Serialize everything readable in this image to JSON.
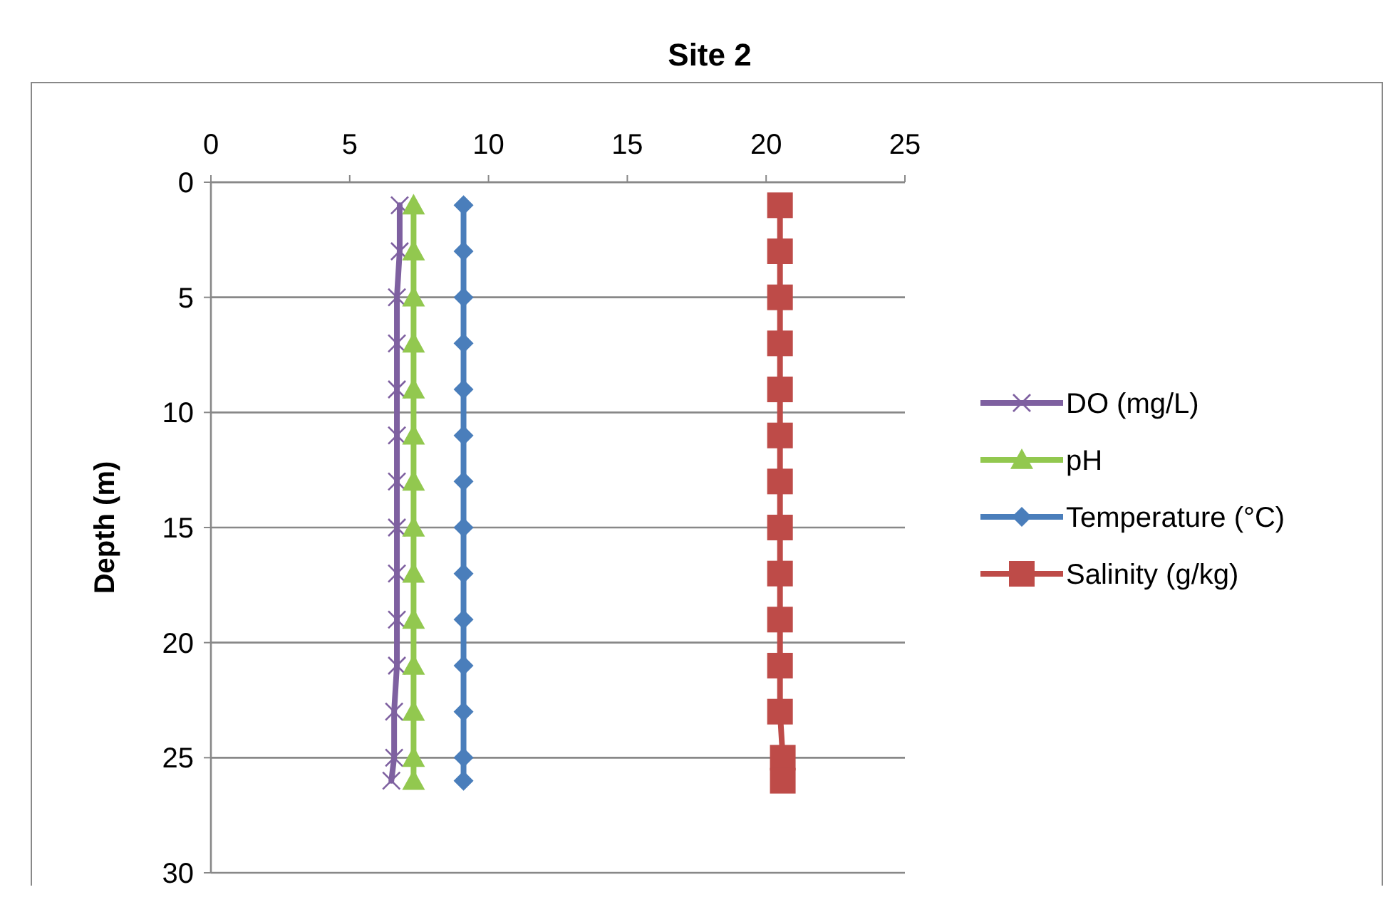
{
  "chart_data": {
    "type": "line",
    "title": "Site 2",
    "ylabel": "Depth (m)",
    "xlim": [
      0,
      25
    ],
    "xticks": [
      0,
      5,
      10,
      15,
      20,
      25
    ],
    "ylim": [
      30,
      0
    ],
    "yticks": [
      0,
      5,
      10,
      15,
      20,
      25,
      30
    ],
    "grid": "y",
    "legend": "right",
    "series": [
      {
        "name": "DO (mg/L)",
        "color": "#7e60a0",
        "marker": "cross",
        "x": [
          6.8,
          6.8,
          6.7,
          6.7,
          6.7,
          6.7,
          6.7,
          6.7,
          6.7,
          6.7,
          6.7,
          6.6,
          6.6,
          6.5
        ],
        "values": [
          1,
          3,
          5,
          7,
          9,
          11,
          13,
          15,
          17,
          19,
          21,
          23,
          25,
          26
        ]
      },
      {
        "name": "pH",
        "color": "#92c84f",
        "marker": "triangle",
        "x": [
          7.3,
          7.3,
          7.3,
          7.3,
          7.3,
          7.3,
          7.3,
          7.3,
          7.3,
          7.3,
          7.3,
          7.3,
          7.3,
          7.3
        ],
        "values": [
          1,
          3,
          5,
          7,
          9,
          11,
          13,
          15,
          17,
          19,
          21,
          23,
          25,
          26
        ]
      },
      {
        "name": "Temperature (°C)",
        "color": "#4a7ebb",
        "marker": "diamond",
        "x": [
          9.1,
          9.1,
          9.1,
          9.1,
          9.1,
          9.1,
          9.1,
          9.1,
          9.1,
          9.1,
          9.1,
          9.1,
          9.1,
          9.1
        ],
        "values": [
          1,
          3,
          5,
          7,
          9,
          11,
          13,
          15,
          17,
          19,
          21,
          23,
          25,
          26
        ]
      },
      {
        "name": "Salinity (g/kg)",
        "color": "#be4b48",
        "marker": "square",
        "x": [
          20.5,
          20.5,
          20.5,
          20.5,
          20.5,
          20.5,
          20.5,
          20.5,
          20.5,
          20.5,
          20.5,
          20.5,
          20.6,
          20.6
        ],
        "values": [
          1,
          3,
          5,
          7,
          9,
          11,
          13,
          15,
          17,
          19,
          21,
          23,
          25,
          26
        ]
      }
    ]
  }
}
